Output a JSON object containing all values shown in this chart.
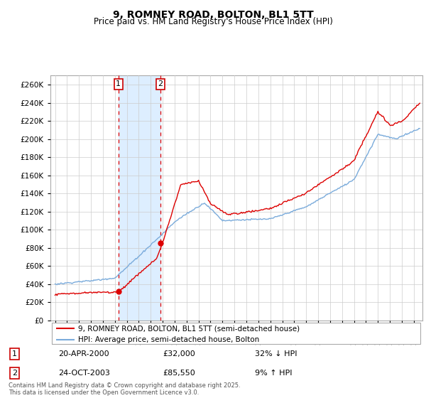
{
  "title": "9, ROMNEY ROAD, BOLTON, BL1 5TT",
  "subtitle": "Price paid vs. HM Land Registry's House Price Index (HPI)",
  "legend_line1": "9, ROMNEY ROAD, BOLTON, BL1 5TT (semi-detached house)",
  "legend_line2": "HPI: Average price, semi-detached house, Bolton",
  "annotation1_date": "20-APR-2000",
  "annotation1_price": "£32,000",
  "annotation1_hpi": "32% ↓ HPI",
  "annotation2_date": "24-OCT-2003",
  "annotation2_price": "£85,550",
  "annotation2_hpi": "9% ↑ HPI",
  "footer": "Contains HM Land Registry data © Crown copyright and database right 2025.\nThis data is licensed under the Open Government Licence v3.0.",
  "hpi_color": "#7aabdb",
  "price_color": "#dd0000",
  "ylim": [
    0,
    270000
  ],
  "yticks": [
    0,
    20000,
    40000,
    60000,
    80000,
    100000,
    120000,
    140000,
    160000,
    180000,
    200000,
    220000,
    240000,
    260000
  ],
  "sale1_year": 2000.3,
  "sale1_price": 32000,
  "sale2_year": 2003.82,
  "sale2_price": 85550,
  "vline1_year": 2000.3,
  "vline2_year": 2003.82,
  "xlim_left": 1994.6,
  "xlim_right": 2025.7,
  "background_color": "#ffffff",
  "grid_color": "#cccccc",
  "span_color": "#ddeeff"
}
